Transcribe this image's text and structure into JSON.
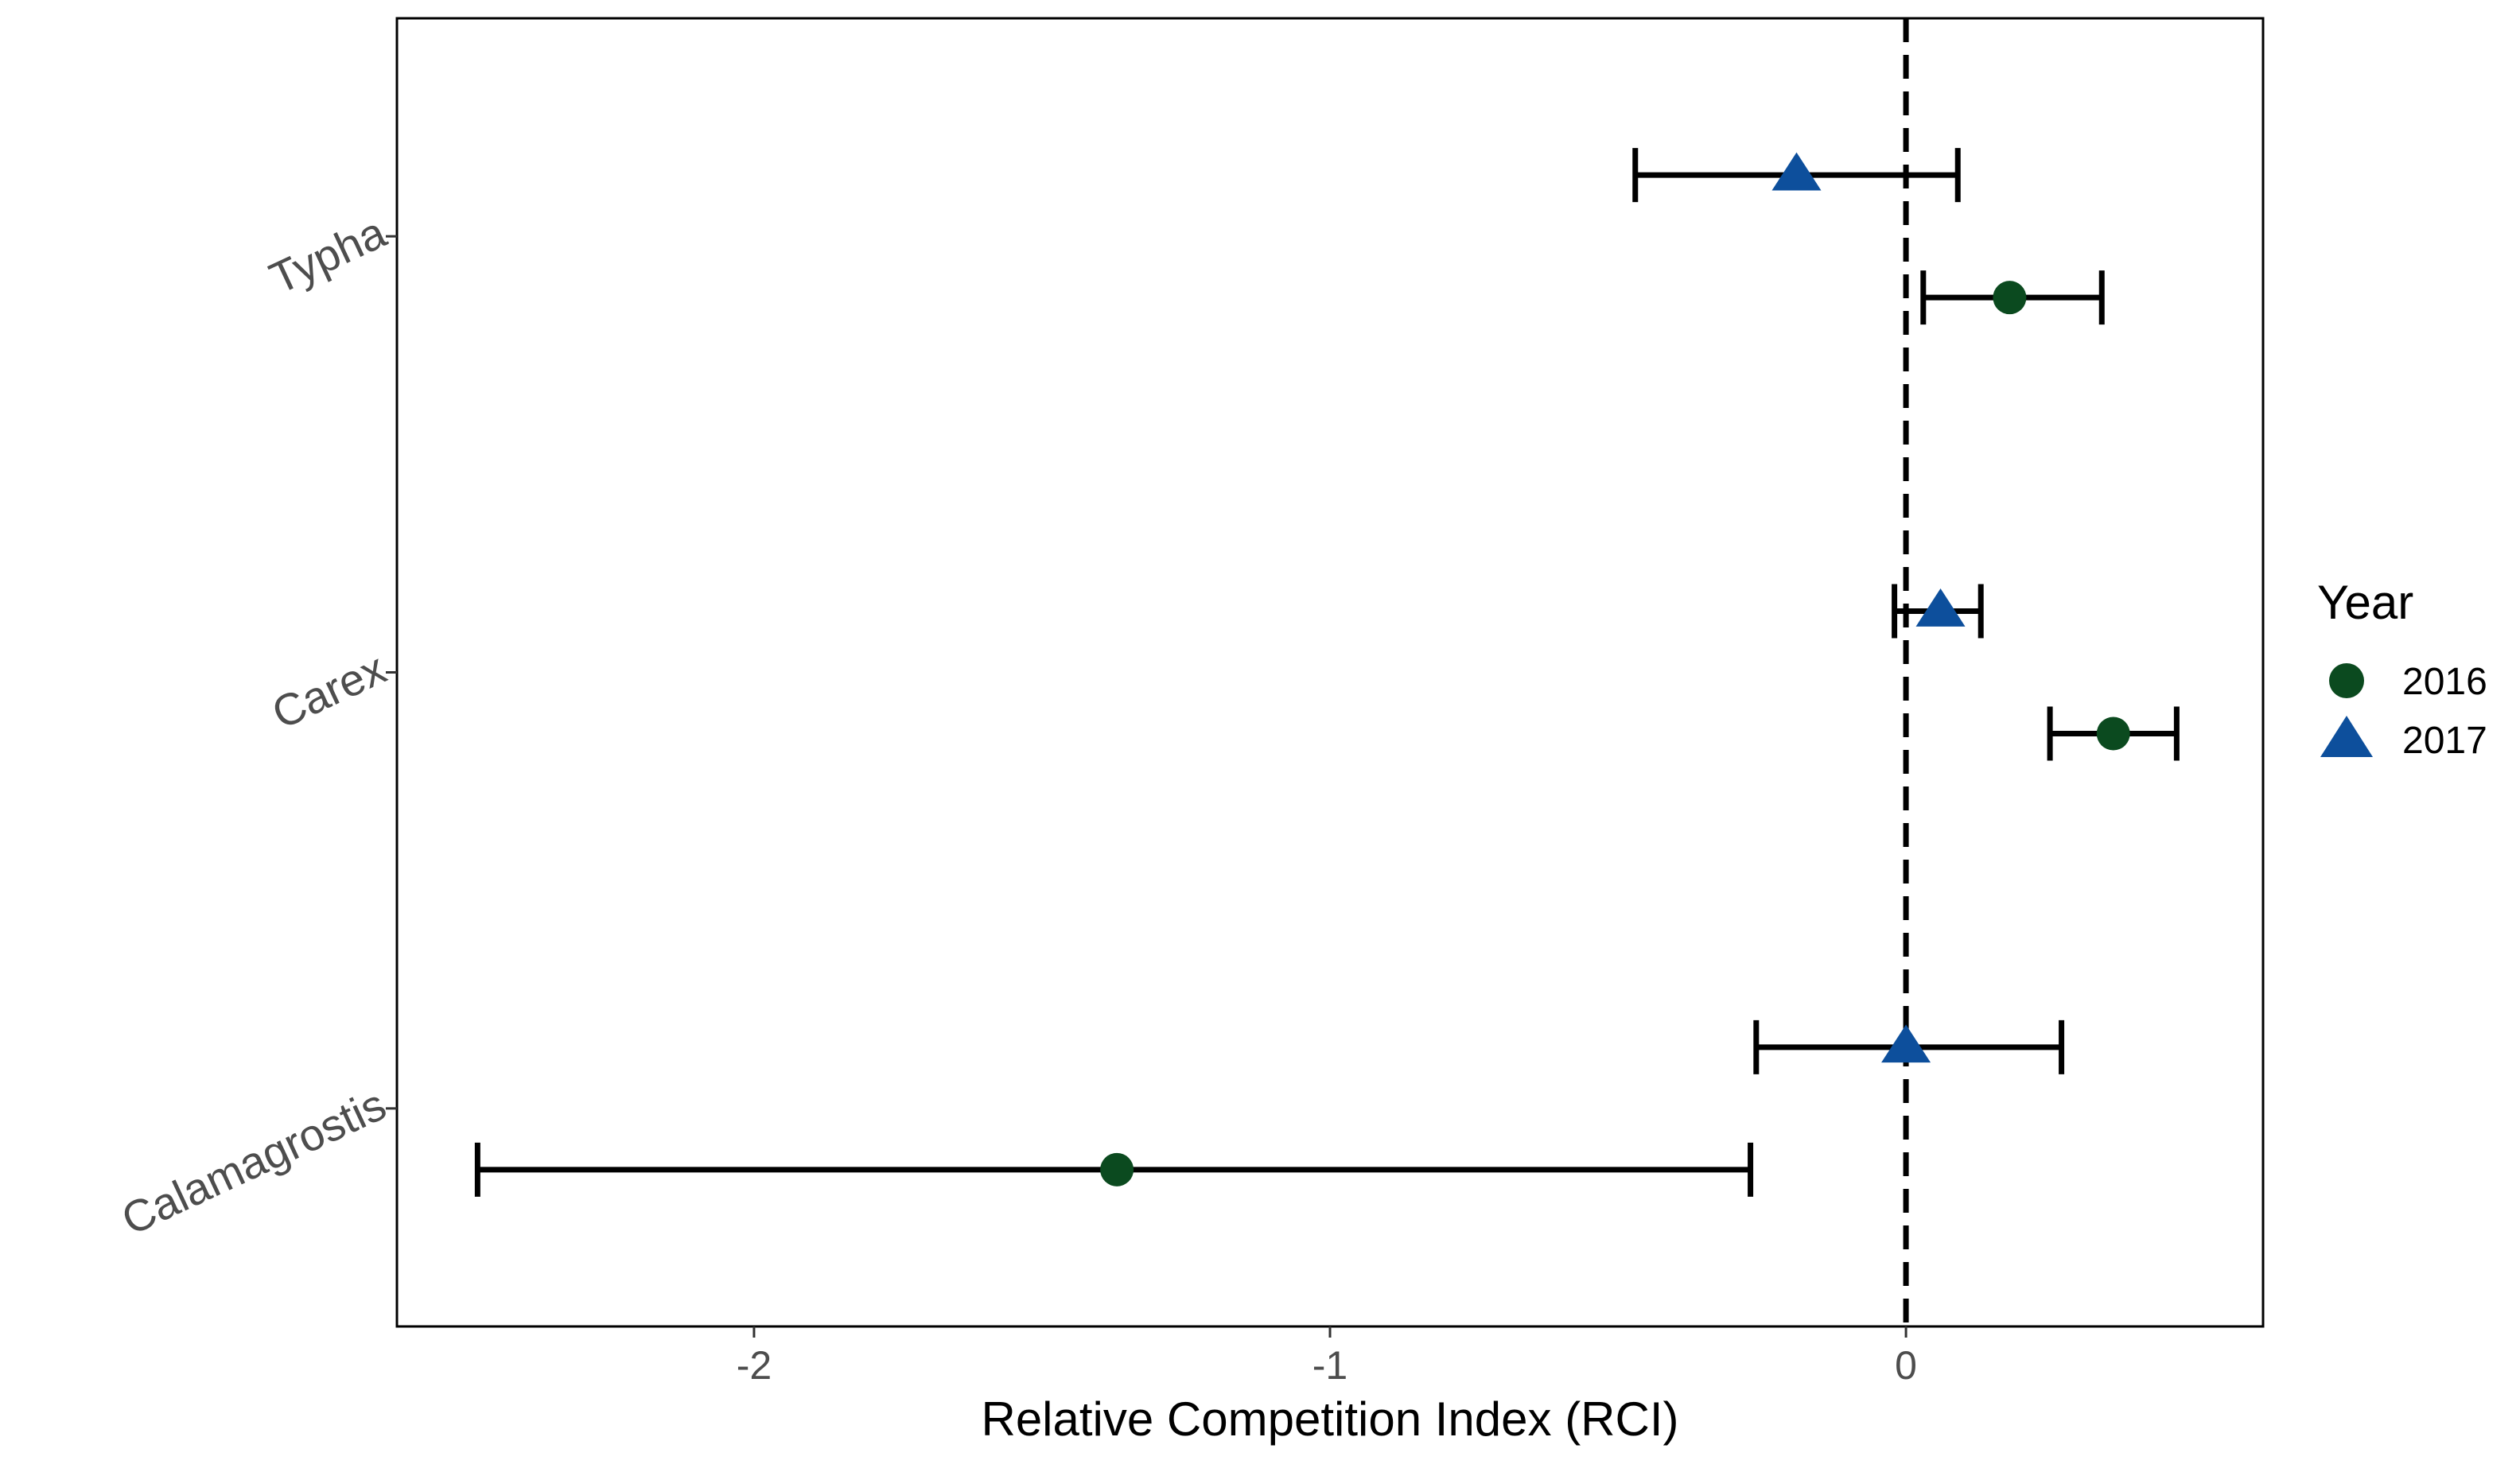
{
  "chart_data": {
    "type": "scatter",
    "subtype": "dot-and-whisker",
    "title": "",
    "xlabel": "Relative Competition Index (RCI)",
    "ylabel": "",
    "xlim": [
      -2.62,
      0.62
    ],
    "x_ticks": [
      {
        "value": -2,
        "label": "-2"
      },
      {
        "value": -1,
        "label": "-1"
      },
      {
        "value": 0,
        "label": "0"
      }
    ],
    "categories": [
      "Typha",
      "Carex",
      "Calamagrostis"
    ],
    "reference_line": {
      "x": 0,
      "style": "dashed"
    },
    "grid": false,
    "legend": {
      "title": "Year",
      "position": "right",
      "entries": [
        {
          "label": "2016",
          "shape": "circle",
          "color": "#0b4a1f"
        },
        {
          "label": "2017",
          "shape": "triangle",
          "color": "#0d4f9c"
        }
      ]
    },
    "series": [
      {
        "name": "2016",
        "shape": "circle",
        "color": "#0b4a1f",
        "points": [
          {
            "category": "Typha",
            "value": 0.18,
            "lower": 0.03,
            "upper": 0.34
          },
          {
            "category": "Carex",
            "value": 0.36,
            "lower": 0.25,
            "upper": 0.47
          },
          {
            "category": "Calamagrostis",
            "value": -1.37,
            "lower": -2.48,
            "upper": -0.27
          }
        ]
      },
      {
        "name": "2017",
        "shape": "triangle",
        "color": "#0d4f9c",
        "points": [
          {
            "category": "Typha",
            "value": -0.19,
            "lower": -0.47,
            "upper": 0.09
          },
          {
            "category": "Carex",
            "value": 0.06,
            "lower": -0.02,
            "upper": 0.13
          },
          {
            "category": "Calamagrostis",
            "value": 0.0,
            "lower": -0.26,
            "upper": 0.27
          }
        ]
      }
    ]
  }
}
